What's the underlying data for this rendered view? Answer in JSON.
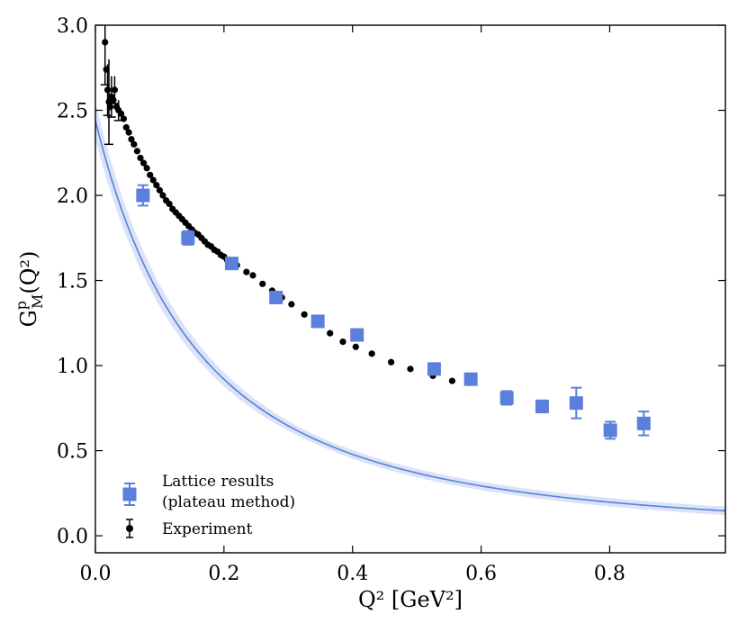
{
  "chart_data": {
    "type": "scatter",
    "title": "",
    "xlabel": "Q² [GeV²]",
    "ylabel": "Gᴾᴹ(Q²)",
    "ylabel_parts": {
      "base": "G",
      "sup": "p",
      "sub": "M",
      "rest": "(Q²)"
    },
    "xlim": [
      0.0,
      0.98
    ],
    "ylim": [
      -0.1,
      3.0
    ],
    "xticks": [
      0.0,
      0.2,
      0.4,
      0.6,
      0.8
    ],
    "xtick_labels": [
      "0.0",
      "0.2",
      "0.4",
      "0.6",
      "0.8"
    ],
    "yticks": [
      0.0,
      0.5,
      1.0,
      1.5,
      2.0,
      2.5,
      3.0
    ],
    "ytick_labels": [
      "0.0",
      "0.5",
      "1.0",
      "1.5",
      "2.0",
      "2.5",
      "3.0"
    ],
    "legend_position": "bottom-left",
    "series": [
      {
        "name": "Lattice results (plateau method)",
        "legend_lines": [
          "Lattice results",
          "(plateau method)"
        ],
        "marker": "square",
        "color": "#5b7fdc",
        "x": [
          0.074,
          0.144,
          0.212,
          0.281,
          0.346,
          0.407,
          0.527,
          0.584,
          0.64,
          0.695,
          0.748,
          0.801,
          0.853
        ],
        "y": [
          2.0,
          1.75,
          1.6,
          1.4,
          1.26,
          1.18,
          0.98,
          0.92,
          0.81,
          0.76,
          0.78,
          0.62,
          0.66
        ],
        "yerr": [
          0.06,
          0.04,
          0.03,
          0.03,
          0.025,
          0.03,
          0.03,
          0.025,
          0.04,
          0.035,
          0.09,
          0.05,
          0.07
        ]
      },
      {
        "name": "Experiment",
        "legend_lines": [
          "Experiment"
        ],
        "marker": "circle",
        "color": "#000000",
        "x": [
          0.015,
          0.017,
          0.019,
          0.021,
          0.023,
          0.025,
          0.028,
          0.03,
          0.033,
          0.036,
          0.04,
          0.044,
          0.048,
          0.052,
          0.056,
          0.06,
          0.065,
          0.07,
          0.075,
          0.08,
          0.085,
          0.09,
          0.095,
          0.1,
          0.105,
          0.11,
          0.115,
          0.12,
          0.125,
          0.13,
          0.135,
          0.14,
          0.145,
          0.15,
          0.155,
          0.16,
          0.165,
          0.17,
          0.175,
          0.18,
          0.185,
          0.19,
          0.195,
          0.2,
          0.205,
          0.21,
          0.215,
          0.22,
          0.235,
          0.245,
          0.26,
          0.275,
          0.29,
          0.305,
          0.325,
          0.345,
          0.365,
          0.385,
          0.405,
          0.43,
          0.46,
          0.49,
          0.525,
          0.555
        ],
        "y": [
          2.9,
          2.74,
          2.62,
          2.55,
          2.52,
          2.58,
          2.56,
          2.62,
          2.52,
          2.5,
          2.48,
          2.45,
          2.4,
          2.37,
          2.33,
          2.3,
          2.26,
          2.22,
          2.19,
          2.16,
          2.12,
          2.09,
          2.06,
          2.03,
          2.0,
          1.97,
          1.95,
          1.92,
          1.9,
          1.88,
          1.86,
          1.84,
          1.82,
          1.8,
          1.78,
          1.77,
          1.75,
          1.73,
          1.71,
          1.7,
          1.68,
          1.67,
          1.65,
          1.64,
          1.62,
          1.61,
          1.6,
          1.59,
          1.55,
          1.53,
          1.48,
          1.44,
          1.4,
          1.36,
          1.3,
          1.24,
          1.19,
          1.14,
          1.11,
          1.07,
          1.02,
          0.98,
          0.94,
          0.91
        ],
        "yerr_large": [
          [
            0.015,
            0.25
          ],
          [
            0.019,
            0.15
          ],
          [
            0.021,
            0.25
          ],
          [
            0.025,
            0.12
          ],
          [
            0.03,
            0.08
          ],
          [
            0.036,
            0.06
          ]
        ]
      }
    ],
    "fit_band": {
      "color": "#5b7fdc",
      "G0": 2.44,
      "lambda2": 0.318,
      "note": "dipole fit with uncertainty band"
    }
  }
}
